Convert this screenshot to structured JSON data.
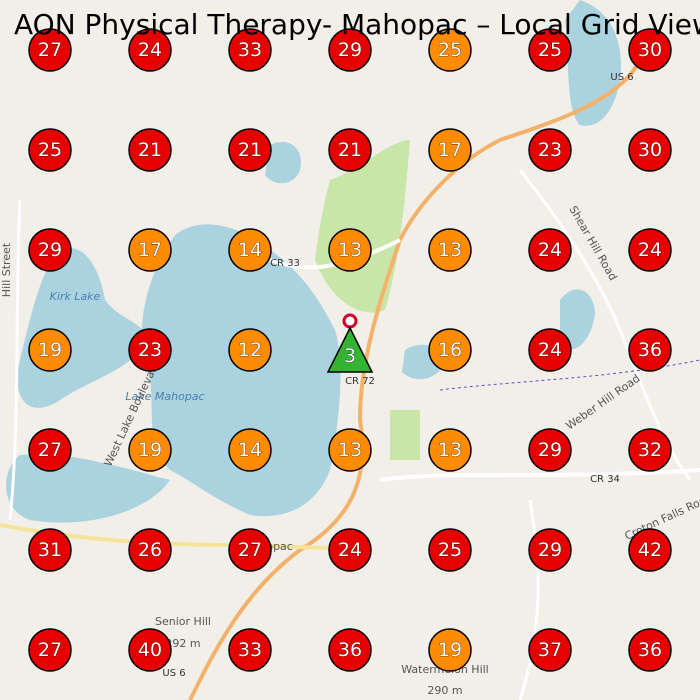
{
  "title": "AON Physical Therapy- Mahopac – Local Grid View",
  "grid": {
    "rows": [
      [
        27,
        24,
        33,
        29,
        25,
        25,
        30
      ],
      [
        25,
        21,
        21,
        21,
        17,
        23,
        30
      ],
      [
        29,
        17,
        14,
        13,
        13,
        24,
        24
      ],
      [
        19,
        23,
        12,
        3,
        16,
        24,
        36
      ],
      [
        27,
        19,
        14,
        13,
        13,
        29,
        32
      ],
      [
        31,
        26,
        27,
        24,
        25,
        29,
        42
      ],
      [
        27,
        40,
        33,
        36,
        19,
        37,
        36
      ]
    ],
    "colors": [
      [
        "#e60000",
        "#e60000",
        "#e60000",
        "#e60000",
        "#ff8c00",
        "#e60000",
        "#e60000"
      ],
      [
        "#e60000",
        "#e60000",
        "#e60000",
        "#e60000",
        "#ff8c00",
        "#e60000",
        "#e60000"
      ],
      [
        "#e60000",
        "#ff8c00",
        "#ff8c00",
        "#ff8c00",
        "#ff8c00",
        "#e60000",
        "#e60000"
      ],
      [
        "#ff8c00",
        "#e60000",
        "#ff8c00",
        "#33b533",
        "#ff8c00",
        "#e60000",
        "#e60000"
      ],
      [
        "#e60000",
        "#ff8c00",
        "#ff8c00",
        "#ff8c00",
        "#ff8c00",
        "#e60000",
        "#e60000"
      ],
      [
        "#e60000",
        "#e60000",
        "#e60000",
        "#e60000",
        "#e60000",
        "#e60000",
        "#e60000"
      ],
      [
        "#e60000",
        "#e60000",
        "#e60000",
        "#e60000",
        "#ff8c00",
        "#e60000",
        "#e60000"
      ]
    ]
  },
  "map_labels": [
    "CR 33",
    "Kirk Lake",
    "Lake Mahopac",
    "CR 72",
    "CR 34",
    "US 6",
    "US 6",
    "Mahopac",
    "Senior Hill",
    "292 m",
    "Watermelon Hill",
    "290 m",
    "Hill Street",
    "Shear Hill Road",
    "Weber Hill Road",
    "West Lake Boulevard",
    "Croton Falls Road"
  ]
}
